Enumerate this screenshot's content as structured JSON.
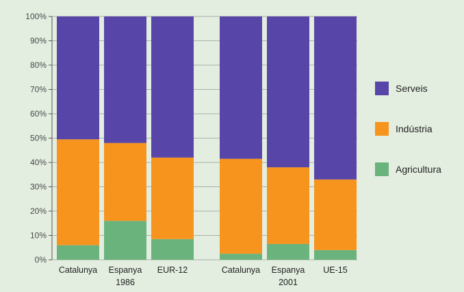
{
  "chart_data": {
    "type": "bar",
    "stacked": true,
    "title": "",
    "xlabel": "",
    "ylabel": "",
    "ylim": [
      0,
      100
    ],
    "yticks": [
      "0%",
      "10%",
      "20%",
      "30%",
      "40%",
      "50%",
      "60%",
      "70%",
      "80%",
      "90%",
      "100%"
    ],
    "groups": [
      {
        "label": "1986",
        "categories": [
          "Catalunya",
          "Espanya",
          "EUR-12"
        ]
      },
      {
        "label": "2001",
        "categories": [
          "Catalunya",
          "Espanya",
          "UE-15"
        ]
      }
    ],
    "categories": [
      "Catalunya",
      "Espanya",
      "EUR-12",
      "Catalunya",
      "Espanya",
      "UE-15"
    ],
    "series": [
      {
        "name": "Agricultura",
        "color": "#6bb37d",
        "values": [
          6,
          16,
          8.5,
          2.5,
          6.5,
          4
        ]
      },
      {
        "name": "Indústria",
        "color": "#f7941e",
        "values": [
          43.5,
          32,
          33.5,
          39,
          31.5,
          29
        ]
      },
      {
        "name": "Serveis",
        "color": "#5746a8",
        "values": [
          50.5,
          52,
          58,
          58.5,
          62,
          67
        ]
      }
    ],
    "legend": {
      "position": "right",
      "order": [
        "Serveis",
        "Indústria",
        "Agricultura"
      ]
    },
    "grid": true
  }
}
